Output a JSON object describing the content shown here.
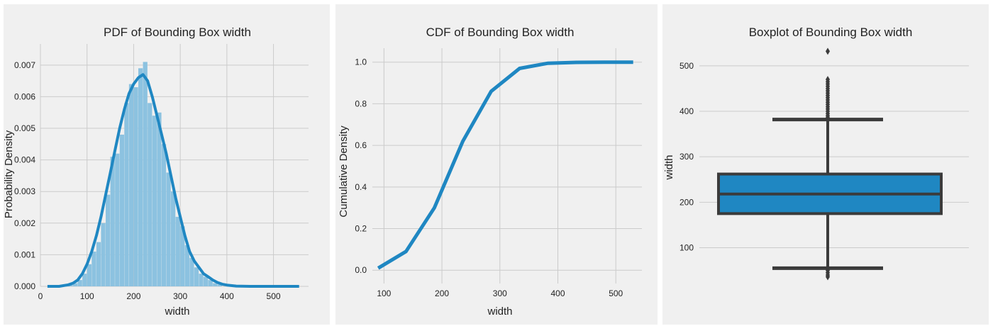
{
  "chart_data": [
    {
      "type": "histogram+kde",
      "title": "PDF of Bounding Box width",
      "xlabel": "width",
      "ylabel": "Probability Density",
      "xlim": [
        0,
        560
      ],
      "ylim": [
        0,
        0.0074
      ],
      "xticks": [
        0,
        100,
        200,
        300,
        400,
        500
      ],
      "yticks": [
        0.0,
        0.001,
        0.002,
        0.003,
        0.004,
        0.005,
        0.006,
        0.007
      ],
      "ytick_labels": [
        "0.000",
        "0.001",
        "0.002",
        "0.003",
        "0.004",
        "0.005",
        "0.006",
        "0.007"
      ],
      "grid": true,
      "colors": {
        "bar": "#8cc2e0",
        "line": "#1f87c2"
      },
      "bins": [
        {
          "x0": 60,
          "x1": 70,
          "v": 5e-05
        },
        {
          "x0": 70,
          "x1": 80,
          "v": 0.0001
        },
        {
          "x0": 80,
          "x1": 90,
          "v": 0.0002
        },
        {
          "x0": 90,
          "x1": 100,
          "v": 0.0004
        },
        {
          "x0": 100,
          "x1": 110,
          "v": 0.0007
        },
        {
          "x0": 110,
          "x1": 120,
          "v": 0.0011
        },
        {
          "x0": 120,
          "x1": 130,
          "v": 0.0014
        },
        {
          "x0": 130,
          "x1": 140,
          "v": 0.002
        },
        {
          "x0": 140,
          "x1": 150,
          "v": 0.0029
        },
        {
          "x0": 150,
          "x1": 160,
          "v": 0.0041
        },
        {
          "x0": 160,
          "x1": 170,
          "v": 0.0042
        },
        {
          "x0": 170,
          "x1": 180,
          "v": 0.0048
        },
        {
          "x0": 180,
          "x1": 190,
          "v": 0.0058
        },
        {
          "x0": 190,
          "x1": 200,
          "v": 0.0064
        },
        {
          "x0": 200,
          "x1": 210,
          "v": 0.0063
        },
        {
          "x0": 210,
          "x1": 220,
          "v": 0.0069
        },
        {
          "x0": 220,
          "x1": 230,
          "v": 0.0071
        },
        {
          "x0": 230,
          "x1": 240,
          "v": 0.0058
        },
        {
          "x0": 240,
          "x1": 250,
          "v": 0.0054
        },
        {
          "x0": 250,
          "x1": 260,
          "v": 0.0055
        },
        {
          "x0": 260,
          "x1": 270,
          "v": 0.0045
        },
        {
          "x0": 270,
          "x1": 280,
          "v": 0.0036
        },
        {
          "x0": 280,
          "x1": 290,
          "v": 0.003
        },
        {
          "x0": 290,
          "x1": 300,
          "v": 0.0022
        },
        {
          "x0": 300,
          "x1": 310,
          "v": 0.0019
        },
        {
          "x0": 310,
          "x1": 320,
          "v": 0.0013
        },
        {
          "x0": 320,
          "x1": 330,
          "v": 0.0009
        },
        {
          "x0": 330,
          "x1": 340,
          "v": 0.0006
        },
        {
          "x0": 340,
          "x1": 350,
          "v": 0.0004
        },
        {
          "x0": 350,
          "x1": 360,
          "v": 0.0003
        },
        {
          "x0": 360,
          "x1": 370,
          "v": 0.0002
        },
        {
          "x0": 370,
          "x1": 380,
          "v": 0.0001
        },
        {
          "x0": 380,
          "x1": 390,
          "v": 6e-05
        }
      ],
      "kde": {
        "x": [
          15,
          40,
          60,
          70,
          80,
          90,
          100,
          110,
          120,
          130,
          140,
          150,
          160,
          170,
          180,
          190,
          200,
          210,
          220,
          230,
          240,
          250,
          260,
          270,
          280,
          290,
          300,
          310,
          320,
          330,
          340,
          350,
          360,
          370,
          380,
          390,
          400,
          420,
          450,
          500,
          555
        ],
        "y": [
          0.0,
          0.0,
          5e-05,
          0.0001,
          0.0002,
          0.0004,
          0.0007,
          0.0011,
          0.0016,
          0.0022,
          0.0029,
          0.0036,
          0.0043,
          0.005,
          0.0056,
          0.0061,
          0.0064,
          0.0066,
          0.0067,
          0.0065,
          0.006,
          0.0054,
          0.0048,
          0.0042,
          0.0035,
          0.0028,
          0.0022,
          0.0016,
          0.0011,
          0.0008,
          0.0006,
          0.0004,
          0.0003,
          0.0002,
          0.00012,
          7e-05,
          4e-05,
          1e-05,
          0.0,
          0.0,
          0.0
        ]
      }
    },
    {
      "type": "line",
      "title": "CDF of Bounding Box width",
      "xlabel": "width",
      "ylabel": "Cumulative Density",
      "xlim": [
        80,
        545
      ],
      "ylim": [
        -0.03,
        1.04
      ],
      "xticks": [
        100,
        200,
        300,
        400,
        500
      ],
      "yticks": [
        0.0,
        0.2,
        0.4,
        0.6,
        0.8,
        1.0
      ],
      "ytick_labels": [
        "0.0",
        "0.2",
        "0.4",
        "0.6",
        "0.8",
        "1.0"
      ],
      "grid": true,
      "colors": {
        "line": "#1f87c2"
      },
      "x": [
        90,
        138,
        187,
        236,
        285,
        334,
        383,
        432,
        481,
        530
      ],
      "y": [
        0.01,
        0.09,
        0.3,
        0.62,
        0.86,
        0.97,
        0.995,
        0.999,
        1.0,
        1.0
      ]
    },
    {
      "type": "box",
      "title": "Boxplot of Bounding Box width",
      "xlabel": "",
      "ylabel": "width",
      "ylim": [
        15,
        545
      ],
      "yticks": [
        100,
        200,
        300,
        400,
        500
      ],
      "grid": true,
      "colors": {
        "box": "#1f87c2",
        "edge": "#3b3b3b"
      },
      "q1": 175,
      "median": 218,
      "q3": 262,
      "whisker_low": 55,
      "whisker_high": 382,
      "outliers_low": [
        50,
        45,
        40,
        36
      ],
      "outliers_high": [
        386,
        390,
        395,
        400,
        405,
        410,
        415,
        420,
        425,
        430,
        435,
        440,
        445,
        450,
        455,
        460,
        465,
        470,
        532
      ]
    }
  ]
}
